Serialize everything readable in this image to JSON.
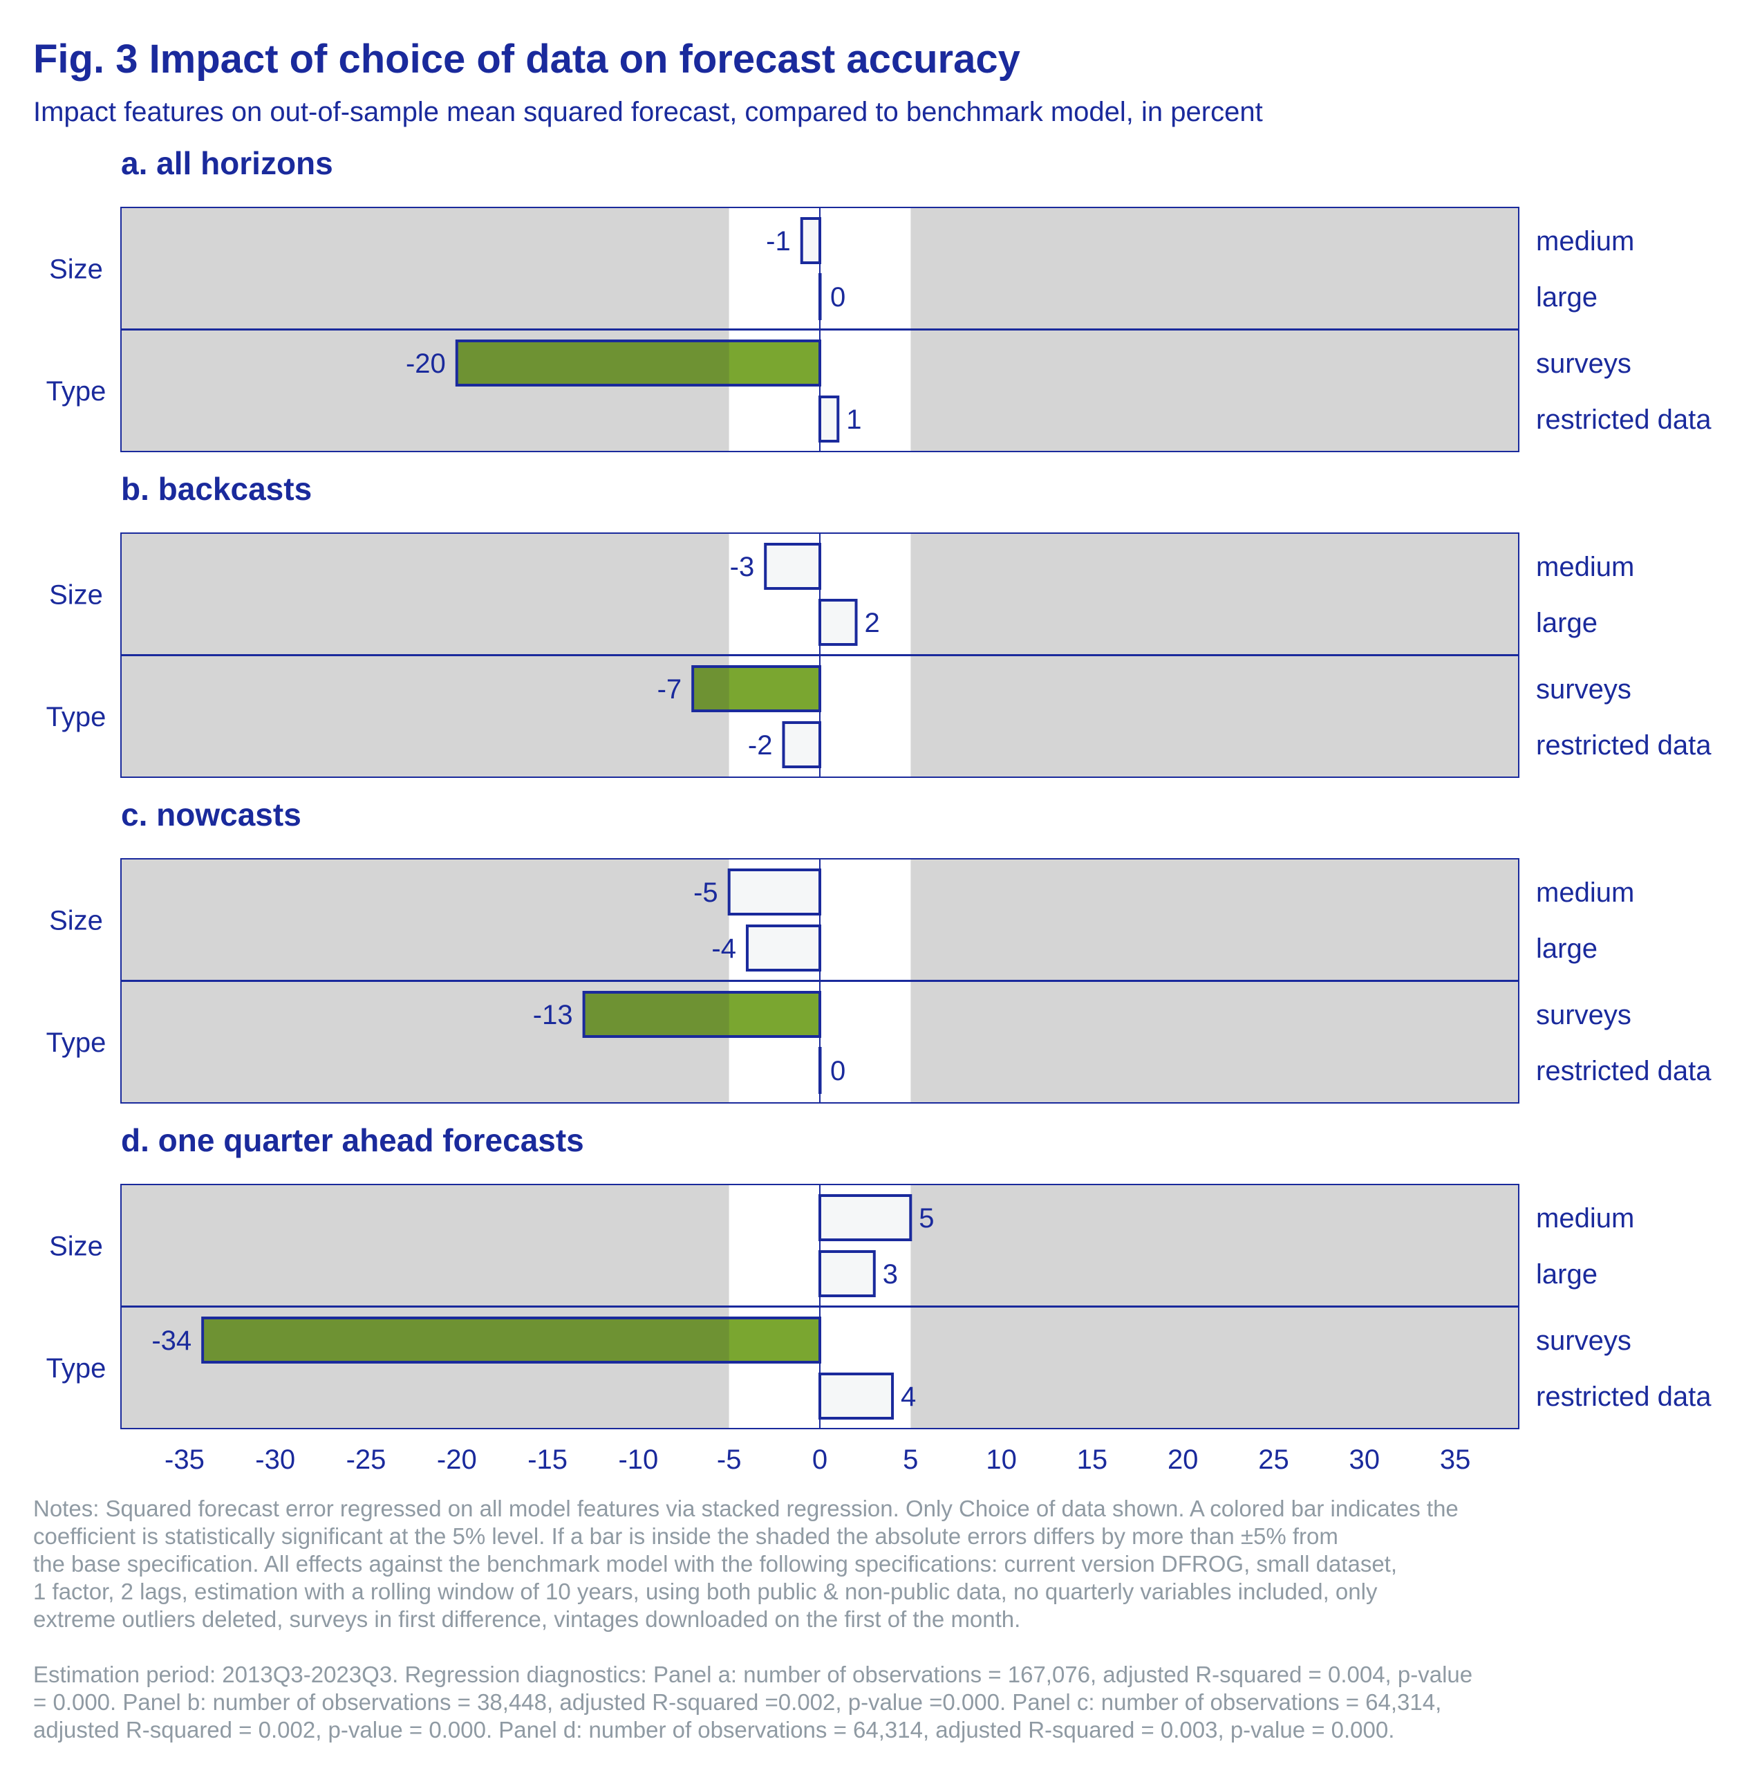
{
  "title": "Fig. 3 Impact of choice of data on forecast accuracy",
  "subtitle": "Impact features on out-of-sample mean squared forecast, compared to benchmark model, in percent",
  "chart_data": {
    "type": "bar",
    "orientation": "horizontal",
    "x_ticks": [
      -35,
      -30,
      -25,
      -20,
      -15,
      -10,
      -5,
      0,
      5,
      10,
      15,
      20,
      25,
      30,
      35
    ],
    "xlim": [
      -38.5,
      38.5
    ],
    "unshaded_band": [
      -5,
      5
    ],
    "colors": {
      "significant_fill": "#7aa630",
      "insignificant_fill": "#f5f7f8",
      "bar_outline": "#1a2a9c",
      "shade": "#d5d5d5",
      "text": "#1a2a9c",
      "notes": "#8f9aa3"
    },
    "groups": [
      {
        "label": "Size",
        "categories": [
          "medium",
          "large"
        ]
      },
      {
        "label": "Type",
        "categories": [
          "surveys",
          "restricted data"
        ]
      }
    ],
    "panels": [
      {
        "title": "a. all horizons",
        "values": [
          -1,
          0,
          -20,
          1
        ],
        "labels": [
          "-1",
          "0",
          "-20",
          "1"
        ],
        "significant": [
          false,
          false,
          true,
          false
        ]
      },
      {
        "title": "b. backcasts",
        "values": [
          -3,
          2,
          -7,
          -2
        ],
        "labels": [
          "-3",
          "2",
          "-7",
          "-2"
        ],
        "significant": [
          false,
          false,
          true,
          false
        ]
      },
      {
        "title": "c. nowcasts",
        "values": [
          -5,
          -4,
          -13,
          0
        ],
        "labels": [
          "-5",
          "-4",
          "-13",
          "0"
        ],
        "significant": [
          false,
          false,
          true,
          false
        ]
      },
      {
        "title": "d. one quarter ahead forecasts",
        "values": [
          5,
          3,
          -34,
          4
        ],
        "labels": [
          "5",
          "3",
          "-34",
          "4"
        ],
        "significant": [
          false,
          false,
          true,
          false
        ]
      }
    ]
  },
  "notes_lines": [
    "Notes: Squared forecast error regressed on all model features via stacked regression. Only Choice of data shown. A colored bar indicates the",
    "coefficient is statistically significant at the 5% level. If a bar is inside the shaded the absolute errors differs by more than ±5% from",
    "the base specification. All effects against the benchmark model with the following specifications: current version DFROG, small dataset,",
    "1 factor, 2 lags, estimation with a rolling window of 10 years, using both public & non-public data, no quarterly variables included, only",
    "extreme outliers deleted, surveys in first difference, vintages downloaded on the first of the month."
  ],
  "estimation_lines": [
    " Estimation period: 2013Q3-2023Q3. Regression diagnostics: Panel a: number of observations = 167,076, adjusted R-squared = 0.004, p-value",
    "= 0.000. Panel b: number of observations = 38,448, adjusted R-squared =0.002, p-value =0.000. Panel c: number of observations = 64,314,",
    "adjusted R-squared = 0.002, p-value = 0.000. Panel d: number of observations = 64,314, adjusted R-squared = 0.003, p-value = 0.000."
  ]
}
